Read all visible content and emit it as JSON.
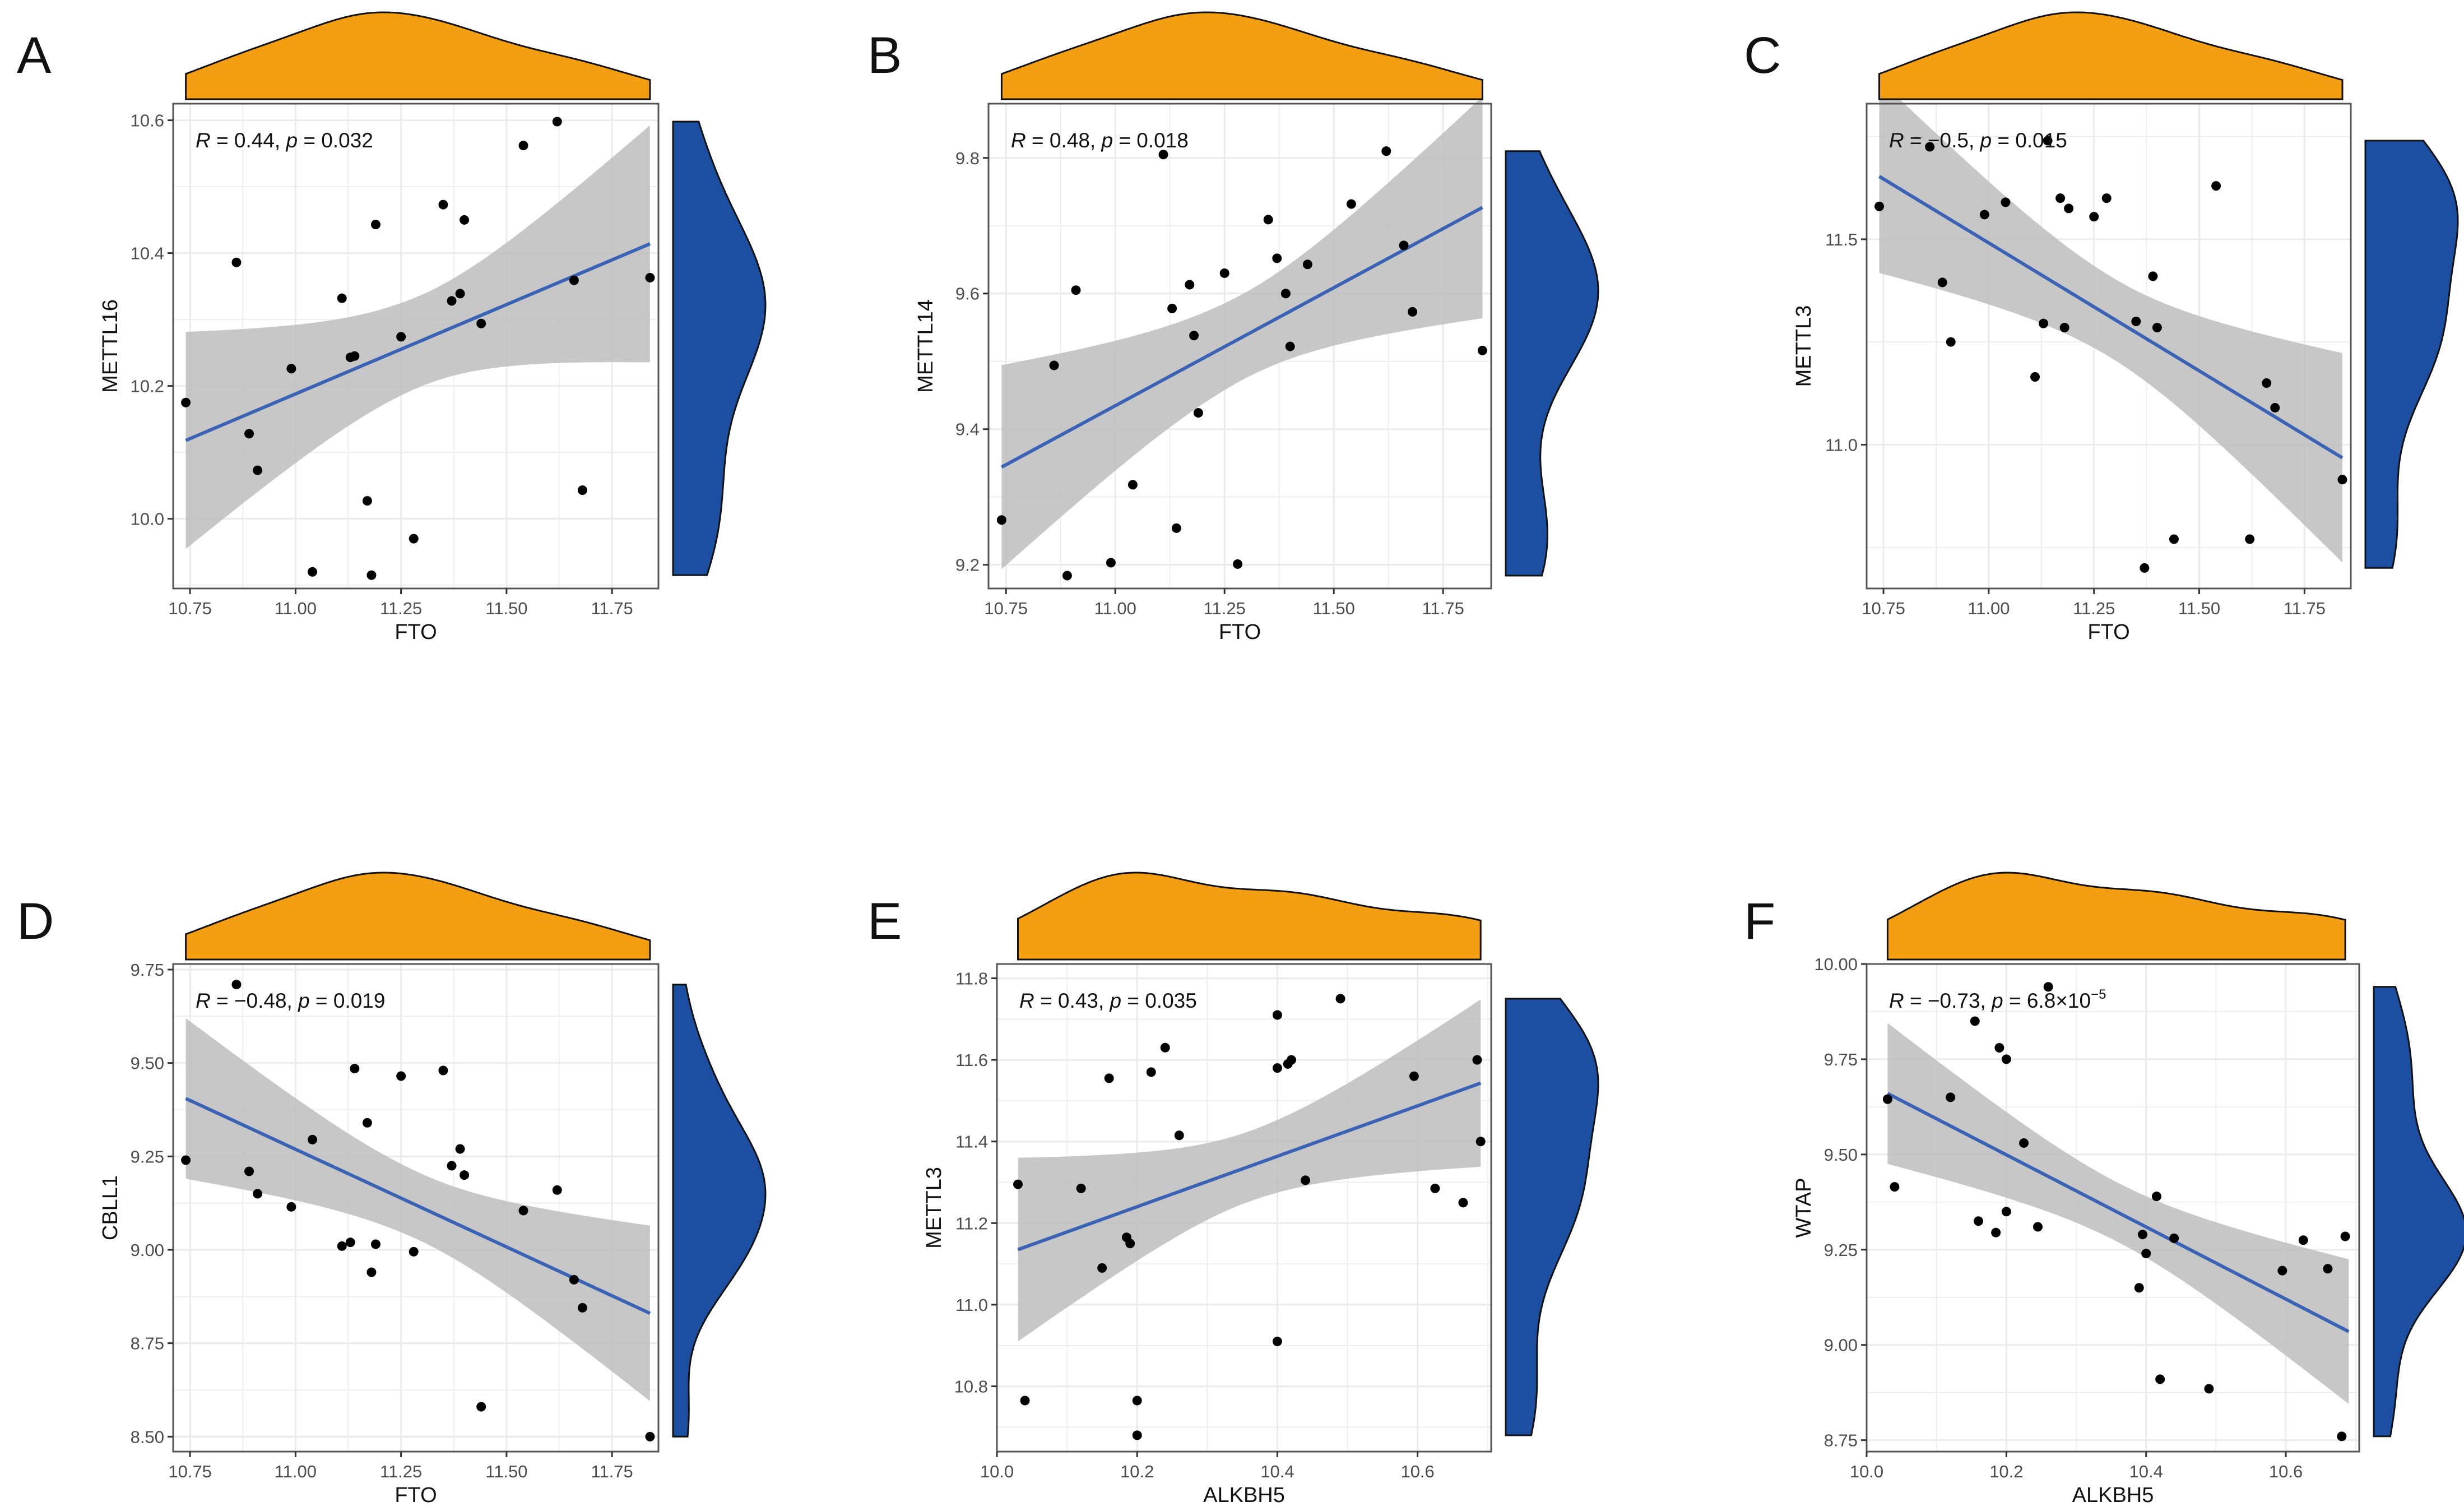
{
  "colors": {
    "point": "#000000",
    "line": "#3a62b5",
    "band": "#bdbdbd",
    "top_density": "#f49f12",
    "right_density": "#1c4fa1",
    "grid": "#ebebeb",
    "panel_border": "#555555"
  },
  "chart_data": [
    {
      "type": "scatter",
      "panel_label": "A",
      "xlabel": "FTO",
      "ylabel": "METTL16",
      "xlim": [
        10.71,
        11.86
      ],
      "ylim": [
        9.895,
        10.625
      ],
      "xticks": [
        10.75,
        11.0,
        11.25,
        11.5,
        11.75
      ],
      "xtick_labels": [
        "10.75",
        "11.00",
        "11.25",
        "11.50",
        "11.75"
      ],
      "yticks": [
        10.0,
        10.2,
        10.4,
        10.6
      ],
      "ytick_labels": [
        "10.0",
        "10.2",
        "10.4",
        "10.6"
      ],
      "stat_r": "0.44",
      "stat_p": "0.032",
      "fit": {
        "x0": 10.74,
        "y0": 10.118,
        "x1": 11.84,
        "y1": 10.414
      },
      "band": {
        "lower": [
          9.955,
          10.236
        ],
        "upper": [
          10.282,
          10.593
        ]
      },
      "x": [
        10.74,
        10.86,
        10.89,
        10.91,
        10.99,
        11.04,
        11.11,
        11.13,
        11.14,
        11.17,
        11.18,
        11.19,
        11.25,
        11.28,
        11.35,
        11.37,
        11.39,
        11.4,
        11.44,
        11.54,
        11.62,
        11.66,
        11.68,
        11.84
      ],
      "y": [
        10.175,
        10.386,
        10.128,
        10.073,
        10.226,
        9.92,
        10.332,
        10.243,
        10.245,
        10.027,
        9.915,
        10.443,
        10.274,
        9.97,
        10.473,
        10.328,
        10.339,
        10.45,
        10.294,
        10.562,
        10.598,
        10.359,
        10.043,
        10.363
      ]
    },
    {
      "type": "scatter",
      "panel_label": "B",
      "xlabel": "FTO",
      "ylabel": "METTL14",
      "xlim": [
        10.71,
        11.86
      ],
      "ylim": [
        9.165,
        9.88
      ],
      "xticks": [
        10.75,
        11.0,
        11.25,
        11.5,
        11.75
      ],
      "xtick_labels": [
        "10.75",
        "11.00",
        "11.25",
        "11.50",
        "11.75"
      ],
      "yticks": [
        9.2,
        9.4,
        9.6,
        9.8
      ],
      "ytick_labels": [
        "9.2",
        "9.4",
        "9.6",
        "9.8"
      ],
      "stat_r": "0.48",
      "stat_p": "0.018",
      "fit": {
        "x0": 10.74,
        "y0": 9.344,
        "x1": 11.84,
        "y1": 9.727
      },
      "band": {
        "lower": [
          9.193,
          9.565
        ],
        "upper": [
          9.494,
          9.892
        ]
      },
      "x": [
        10.74,
        10.86,
        10.89,
        10.91,
        10.99,
        11.04,
        11.11,
        11.13,
        11.14,
        11.17,
        11.18,
        11.19,
        11.25,
        11.28,
        11.35,
        11.37,
        11.39,
        11.4,
        11.44,
        11.54,
        11.62,
        11.66,
        11.68,
        11.84
      ],
      "y": [
        9.266,
        9.494,
        9.184,
        9.605,
        9.203,
        9.318,
        9.805,
        9.578,
        9.254,
        9.613,
        9.538,
        9.424,
        9.63,
        9.201,
        9.709,
        9.652,
        9.6,
        9.522,
        9.643,
        9.732,
        9.81,
        9.671,
        9.573,
        9.516
      ]
    },
    {
      "type": "scatter",
      "panel_label": "C",
      "xlabel": "FTO",
      "ylabel": "METTL3",
      "xlim": [
        10.71,
        11.86
      ],
      "ylim": [
        10.65,
        11.83
      ],
      "xticks": [
        10.75,
        11.0,
        11.25,
        11.5,
        11.75
      ],
      "xtick_labels": [
        "10.75",
        "11.00",
        "11.25",
        "11.50",
        "11.75"
      ],
      "yticks": [
        11.0,
        11.5
      ],
      "ytick_labels": [
        "11.0",
        "11.5"
      ],
      "stat_r": "−0.5",
      "stat_p": "0.015",
      "fit": {
        "x0": 10.74,
        "y0": 11.653,
        "x1": 11.84,
        "y1": 10.968
      },
      "band": {
        "lower": [
          11.42,
          10.72
        ],
        "upper": [
          11.89,
          11.23
        ]
      },
      "x": [
        10.74,
        10.86,
        10.89,
        10.91,
        10.99,
        11.04,
        11.11,
        11.13,
        11.14,
        11.17,
        11.18,
        11.19,
        11.25,
        11.28,
        11.35,
        11.37,
        11.39,
        11.4,
        11.44,
        11.54,
        11.62,
        11.66,
        11.68,
        11.84
      ],
      "y": [
        11.58,
        11.725,
        11.395,
        11.25,
        11.56,
        11.59,
        11.165,
        11.295,
        11.74,
        11.6,
        11.285,
        11.575,
        11.555,
        11.6,
        11.3,
        10.7,
        11.41,
        11.285,
        10.77,
        11.63,
        10.77,
        11.15,
        11.09,
        10.915
      ]
    },
    {
      "type": "scatter",
      "panel_label": "D",
      "xlabel": "FTO",
      "ylabel": "CBLL1",
      "xlim": [
        10.71,
        11.86
      ],
      "ylim": [
        8.46,
        9.765
      ],
      "xticks": [
        10.75,
        11.0,
        11.25,
        11.5,
        11.75
      ],
      "xtick_labels": [
        "10.75",
        "11.00",
        "11.25",
        "11.50",
        "11.75"
      ],
      "yticks": [
        8.5,
        8.75,
        9.0,
        9.25,
        9.5,
        9.75
      ],
      "ytick_labels": [
        "8.50",
        "8.75",
        "9.00",
        "9.25",
        "9.50",
        "9.75"
      ],
      "stat_r": "−0.48",
      "stat_p": "0.019",
      "fit": {
        "x0": 10.74,
        "y0": 9.405,
        "x1": 11.84,
        "y1": 8.83
      },
      "band": {
        "lower": [
          9.19,
          8.6
        ],
        "upper": [
          9.62,
          9.07
        ]
      },
      "x": [
        10.74,
        10.86,
        10.89,
        10.91,
        10.99,
        11.04,
        11.11,
        11.13,
        11.14,
        11.17,
        11.18,
        11.19,
        11.25,
        11.28,
        11.35,
        11.37,
        11.39,
        11.4,
        11.44,
        11.54,
        11.62,
        11.66,
        11.68,
        11.84
      ],
      "y": [
        9.24,
        9.71,
        9.21,
        9.15,
        9.115,
        9.295,
        9.01,
        9.02,
        9.485,
        9.34,
        8.94,
        9.015,
        9.465,
        8.995,
        9.48,
        9.225,
        9.27,
        9.2,
        8.58,
        9.105,
        9.16,
        8.92,
        8.845,
        8.5
      ]
    },
    {
      "type": "scatter",
      "panel_label": "E",
      "xlabel": "ALKBH5",
      "ylabel": "METTL3",
      "xlim": [
        10.0,
        10.705
      ],
      "ylim": [
        10.64,
        11.835
      ],
      "xticks": [
        10.0,
        10.2,
        10.4,
        10.6
      ],
      "xtick_labels": [
        "10.0",
        "10.2",
        "10.4",
        "10.6"
      ],
      "yticks": [
        10.8,
        11.0,
        11.2,
        11.4,
        11.6,
        11.8
      ],
      "ytick_labels": [
        "10.8",
        "11.0",
        "11.2",
        "11.4",
        "11.6",
        "11.8"
      ],
      "stat_r": "0.43",
      "stat_p": "0.035",
      "fit": {
        "x0": 10.03,
        "y0": 11.135,
        "x1": 10.69,
        "y1": 11.543
      },
      "band": {
        "lower": [
          10.91,
          11.38
        ],
        "upper": [
          11.36,
          11.79
        ]
      },
      "x": [
        10.03,
        10.04,
        10.12,
        10.15,
        10.16,
        10.185,
        10.19,
        10.2,
        10.2,
        10.22,
        10.24,
        10.26,
        10.4,
        10.4,
        10.4,
        10.415,
        10.42,
        10.44,
        10.49,
        10.595,
        10.625,
        10.665,
        10.685,
        10.69
      ],
      "y": [
        11.295,
        10.765,
        11.285,
        11.09,
        11.555,
        11.165,
        11.15,
        10.765,
        10.68,
        11.57,
        11.63,
        11.415,
        11.71,
        11.58,
        10.91,
        11.59,
        11.6,
        11.305,
        11.75,
        11.56,
        11.285,
        11.25,
        11.6,
        11.4
      ]
    },
    {
      "type": "scatter",
      "panel_label": "F",
      "xlabel": "ALKBH5",
      "ylabel": "WTAP",
      "xlim": [
        10.0,
        10.705
      ],
      "ylim": [
        8.72,
        10.0
      ],
      "xticks": [
        10.0,
        10.2,
        10.4,
        10.6
      ],
      "xtick_labels": [
        "10.0",
        "10.2",
        "10.4",
        "10.6"
      ],
      "yticks": [
        8.75,
        9.0,
        9.25,
        9.5,
        9.75,
        10.0
      ],
      "ytick_labels": [
        "8.75",
        "9.00",
        "9.25",
        "9.50",
        "9.75",
        "10.00"
      ],
      "stat_r": "−0.73",
      "stat_p": "6.8×10",
      "stat_p_exponent": "−5",
      "fit": {
        "x0": 10.03,
        "y0": 9.66,
        "x1": 10.69,
        "y1": 9.035
      },
      "band": {
        "lower": [
          9.47,
          8.85
        ],
        "upper": [
          9.84,
          9.23
        ]
      },
      "x": [
        10.03,
        10.04,
        10.12,
        10.155,
        10.16,
        10.185,
        10.19,
        10.2,
        10.2,
        10.225,
        10.245,
        10.26,
        10.39,
        10.395,
        10.4,
        10.415,
        10.42,
        10.44,
        10.49,
        10.595,
        10.625,
        10.66,
        10.68,
        10.685
      ],
      "y": [
        9.645,
        9.415,
        9.65,
        9.85,
        9.325,
        9.295,
        9.78,
        9.35,
        9.75,
        9.53,
        9.31,
        9.94,
        9.15,
        9.29,
        9.24,
        9.39,
        8.91,
        9.28,
        8.885,
        9.195,
        9.275,
        9.2,
        8.76,
        9.285
      ]
    }
  ]
}
